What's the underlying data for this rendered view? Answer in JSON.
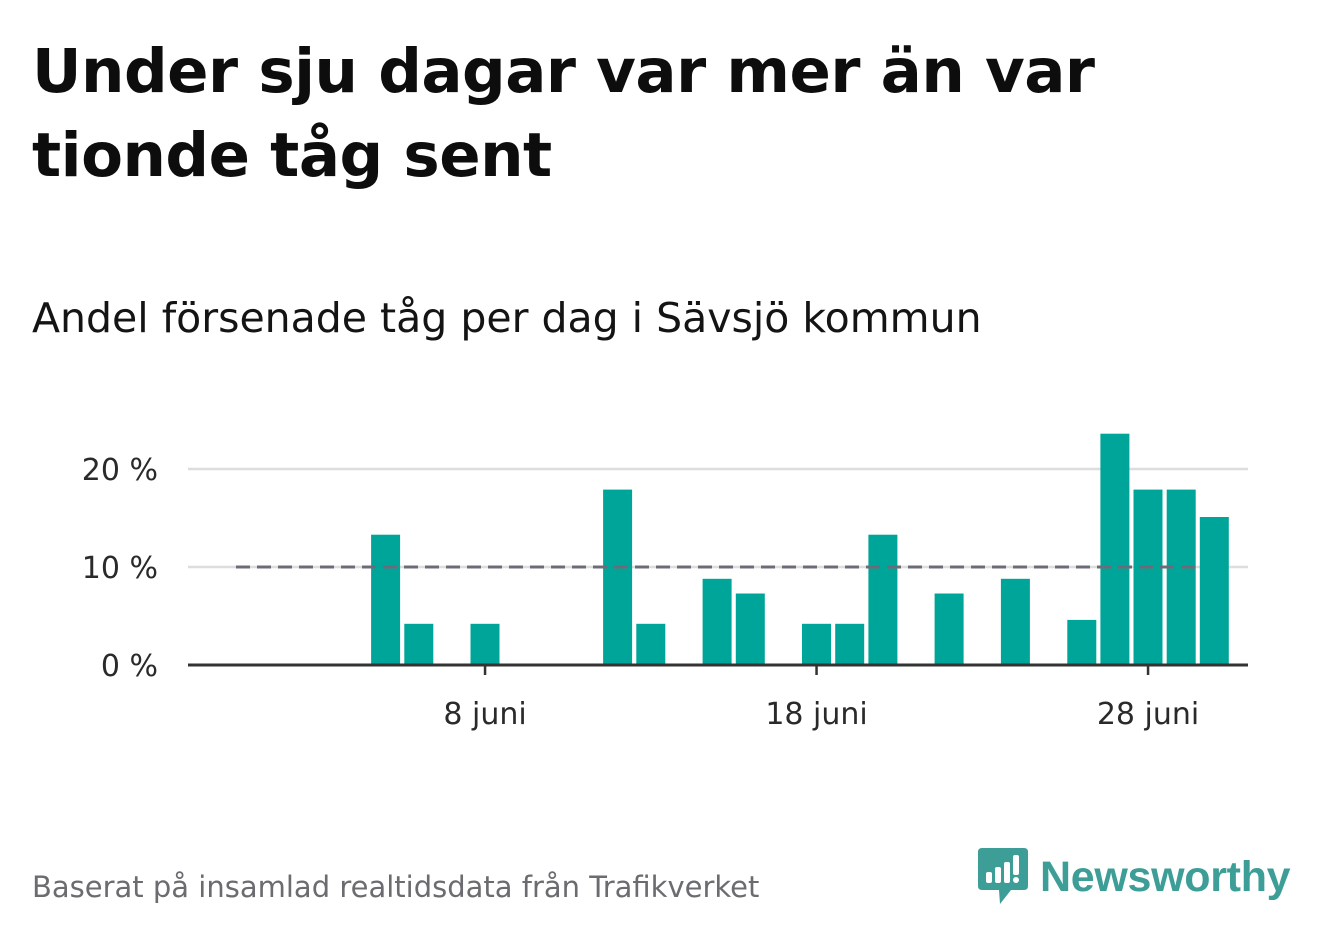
{
  "title": "Under sju dagar var mer än var tionde tåg sent",
  "subtitle": "Andel försenade tåg per dag i Sävsjö kommun",
  "source": "Baserat på insamlad realtidsdata från Trafikverket",
  "brand": {
    "name": "Newsworthy",
    "icon": "newsworthy-logo-icon"
  },
  "colors": {
    "bar": "#00a59a",
    "threshold": "#6c6c78",
    "grid": "#dddddd",
    "axis": "#333333",
    "brand": "#3d9e97"
  },
  "chart_data": {
    "type": "bar",
    "title": "Andel försenade tåg per dag i Sävsjö kommun",
    "xlabel": "",
    "ylabel": "",
    "unit": "%",
    "x": [
      "1 juni",
      "2 juni",
      "3 juni",
      "4 juni",
      "5 juni",
      "6 juni",
      "7 juni",
      "8 juni",
      "9 juni",
      "10 juni",
      "11 juni",
      "12 juni",
      "13 juni",
      "14 juni",
      "15 juni",
      "16 juni",
      "17 juni",
      "18 juni",
      "19 juni",
      "20 juni",
      "21 juni",
      "22 juni",
      "23 juni",
      "24 juni",
      "25 juni",
      "26 juni",
      "27 juni",
      "28 juni",
      "29 juni",
      "30 juni"
    ],
    "values": [
      0,
      0,
      0,
      0,
      13.3,
      4.2,
      0,
      4.2,
      0,
      0,
      0,
      17.9,
      4.2,
      0,
      8.8,
      7.3,
      0,
      4.2,
      4.2,
      13.3,
      0,
      7.3,
      0,
      8.8,
      0,
      4.6,
      23.6,
      17.9,
      17.9,
      15.1
    ],
    "ylim": [
      0,
      25
    ],
    "yticks": [
      0,
      10,
      20
    ],
    "ytick_labels": [
      "0 %",
      "10 %",
      "20 %"
    ],
    "xticks": [
      "8 juni",
      "18 juni",
      "28 juni"
    ],
    "threshold": 10,
    "grid": true
  }
}
